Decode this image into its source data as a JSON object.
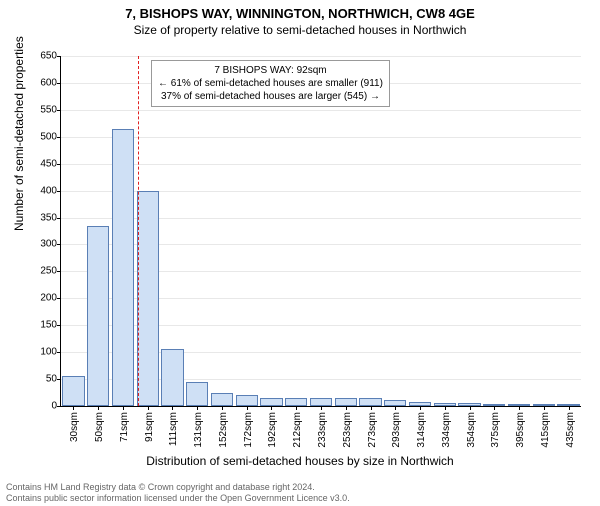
{
  "title": "7, BISHOPS WAY, WINNINGTON, NORTHWICH, CW8 4GE",
  "subtitle": "Size of property relative to semi-detached houses in Northwich",
  "yaxis_label": "Number of semi-detached properties",
  "xaxis_label": "Distribution of semi-detached houses by size in Northwich",
  "footer_line1": "Contains HM Land Registry data © Crown copyright and database right 2024.",
  "footer_line2": "Contains public sector information licensed under the Open Government Licence v3.0.",
  "chart": {
    "type": "bar",
    "ylim": [
      0,
      650
    ],
    "ytick_step": 50,
    "categories": [
      "30sqm",
      "50sqm",
      "71sqm",
      "91sqm",
      "111sqm",
      "131sqm",
      "152sqm",
      "172sqm",
      "192sqm",
      "212sqm",
      "233sqm",
      "253sqm",
      "273sqm",
      "293sqm",
      "314sqm",
      "334sqm",
      "354sqm",
      "375sqm",
      "395sqm",
      "415sqm",
      "435sqm"
    ],
    "values": [
      55,
      335,
      515,
      400,
      105,
      45,
      25,
      20,
      15,
      15,
      15,
      15,
      15,
      12,
      8,
      5,
      5,
      3,
      3,
      3,
      3
    ],
    "bar_fill_color": "#cfe0f5",
    "bar_border_color": "#5a7fb5",
    "background_color": "#ffffff",
    "grid_color": "#e8e8e8",
    "bar_width_ratio": 0.9,
    "marker": {
      "position_index": 3.1,
      "color": "#e02020"
    },
    "annotation": {
      "line1": "7 BISHOPS WAY: 92sqm",
      "line2": "← 61% of semi-detached houses are smaller (911)",
      "line3": "37% of semi-detached houses are larger (545) →"
    }
  },
  "fonts": {
    "title_size": 13,
    "subtitle_size": 12,
    "axis_label_size": 12,
    "tick_size": 10,
    "annotation_size": 10,
    "footer_size": 9
  }
}
